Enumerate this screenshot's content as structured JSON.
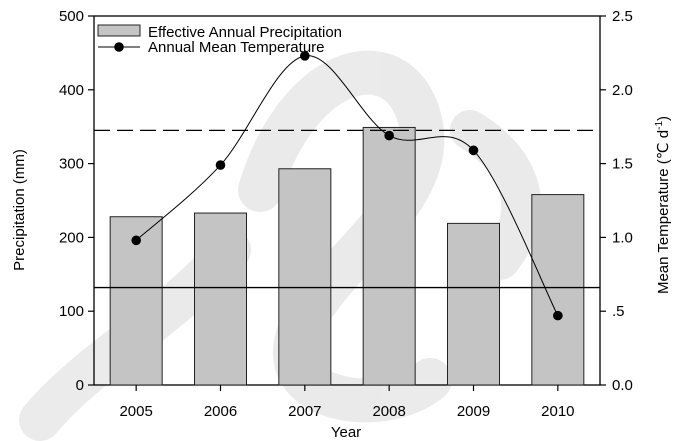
{
  "chart_data": {
    "type": "bar",
    "categories": [
      "2005",
      "2006",
      "2007",
      "2008",
      "2009",
      "2010"
    ],
    "series": [
      {
        "name": "Effective Annual Precipitation",
        "type": "bar",
        "axis": "left",
        "color": "#c4c4c4",
        "values": [
          228,
          233,
          293,
          349,
          219,
          258
        ]
      },
      {
        "name": "Annual Mean Temperature",
        "type": "line",
        "axis": "right",
        "color": "#000000",
        "values": [
          0.98,
          1.49,
          2.23,
          1.69,
          1.59,
          0.47
        ]
      }
    ],
    "reference_lines": [
      {
        "style": "dashed",
        "axis": "left",
        "value": 345
      },
      {
        "style": "solid",
        "axis": "left",
        "value": 132
      }
    ],
    "xlabel": "Year",
    "ylabel": "Precipitation (mm)",
    "y2label": "Mean Temperature (℃ d",
    "y2label_sup": "-1",
    "y2label_end": ")",
    "ylim": [
      0,
      500
    ],
    "y2lim": [
      0,
      2.5
    ],
    "yticks": [
      0,
      100,
      200,
      300,
      400,
      500
    ],
    "y2ticks": [
      0,
      0.5,
      1.0,
      1.5,
      2.0,
      2.5
    ],
    "y2tick_labels": [
      "0.0",
      ".5",
      "1.0",
      "1.5",
      "2.0",
      "2.5"
    ],
    "legend_position": "top-left",
    "grid": false
  }
}
